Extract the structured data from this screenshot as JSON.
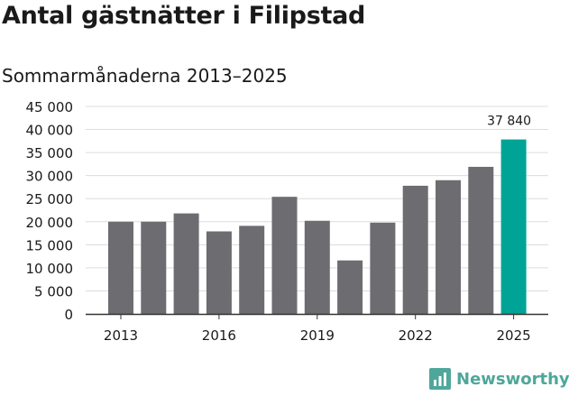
{
  "title": "Antal gästnätter i Filipstad",
  "subtitle": "Sommarmånaderna 2013–2025",
  "brand": {
    "name": "Newsworthy",
    "icon": "newsworthy-logo-icon",
    "color": "#4ea79a"
  },
  "chart_data": {
    "type": "bar",
    "title": "Antal gästnätter i Filipstad",
    "subtitle": "Sommarmånaderna 2013–2025",
    "categories": [
      "2013",
      "2014",
      "2015",
      "2016",
      "2017",
      "2018",
      "2019",
      "2020",
      "2021",
      "2022",
      "2023",
      "2024",
      "2025"
    ],
    "values": [
      20000,
      20000,
      21800,
      17900,
      19100,
      25400,
      20200,
      11600,
      19800,
      27800,
      29000,
      31900,
      37840
    ],
    "highlight_index": 12,
    "bar_color": "#6d6c71",
    "highlight_color": "#00a497",
    "ylim": [
      0,
      45000
    ],
    "yticks": [
      0,
      5000,
      10000,
      15000,
      20000,
      25000,
      30000,
      35000,
      40000,
      45000
    ],
    "ytick_labels": [
      "0",
      "5 000",
      "10 000",
      "15 000",
      "20 000",
      "25 000",
      "30 000",
      "35 000",
      "40 000",
      "45 000"
    ],
    "xtick_labels": [
      "2013",
      "2016",
      "2019",
      "2022",
      "2025"
    ],
    "xtick_indices": [
      0,
      3,
      6,
      9,
      12
    ],
    "data_labels": [
      {
        "index": 12,
        "text": "37 840"
      }
    ],
    "grid": true,
    "legend": "none",
    "xlabel": "",
    "ylabel": ""
  }
}
